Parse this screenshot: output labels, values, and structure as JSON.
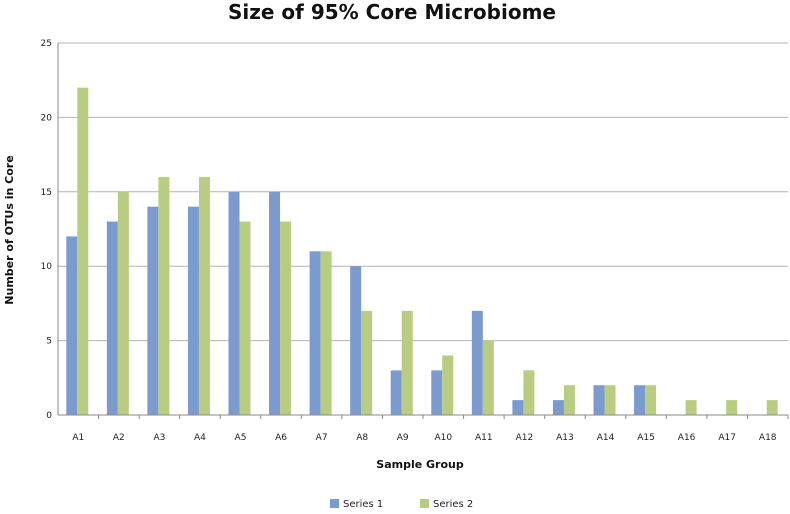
{
  "chart_data": {
    "type": "bar",
    "title": "Size of 95% Core Microbiome",
    "ylabel": "Number of OTUs in Core",
    "xlabel": "Sample Group",
    "ylim": [
      0,
      25
    ],
    "yticks": [
      0,
      5,
      10,
      15,
      20,
      25
    ],
    "grid": true,
    "legend_position": "bottom",
    "categories": [
      "A1",
      "A2",
      "A3",
      "A4",
      "A5",
      "A6",
      "A7",
      "A8",
      "A9",
      "A10",
      "A11",
      "A12",
      "A13",
      "A14",
      "A15",
      "A16",
      "A17",
      "A18"
    ],
    "series": [
      {
        "name": "Series 1",
        "color": "#7b9bcf",
        "values": [
          12,
          13,
          14,
          14,
          15,
          15,
          11,
          10,
          3,
          3,
          7,
          1,
          1,
          2,
          2,
          0,
          0,
          0
        ]
      },
      {
        "name": "Series 2",
        "color": "#b9cd82",
        "values": [
          22,
          15,
          16,
          16,
          13,
          13,
          11,
          7,
          7,
          4,
          5,
          3,
          2,
          2,
          2,
          1,
          1,
          1
        ]
      }
    ]
  }
}
